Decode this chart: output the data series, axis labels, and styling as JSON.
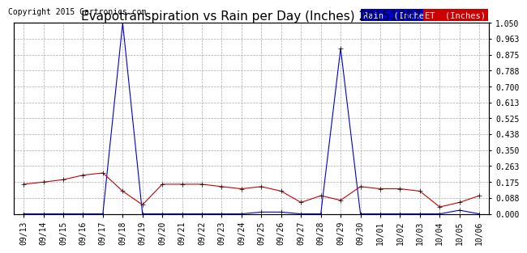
{
  "title": "Evapotranspiration vs Rain per Day (Inches) 20151007",
  "copyright": "Copyright 2015 Cartronics.com",
  "x_labels": [
    "09/13",
    "09/14",
    "09/15",
    "09/16",
    "09/17",
    "09/18",
    "09/19",
    "09/20",
    "09/21",
    "09/22",
    "09/23",
    "09/24",
    "09/25",
    "09/26",
    "09/27",
    "09/28",
    "09/29",
    "09/30",
    "10/01",
    "10/02",
    "10/03",
    "10/04",
    "10/05",
    "10/06"
  ],
  "rain_values": [
    0.0,
    0.0,
    0.0,
    0.0,
    0.0,
    1.05,
    0.0,
    0.0,
    0.0,
    0.0,
    0.0,
    0.0,
    0.01,
    0.01,
    0.0,
    0.0,
    0.91,
    0.0,
    0.0,
    0.0,
    0.0,
    0.0,
    0.02,
    0.0
  ],
  "et_values": [
    0.163,
    0.175,
    0.188,
    0.213,
    0.225,
    0.125,
    0.05,
    0.163,
    0.163,
    0.163,
    0.15,
    0.138,
    0.15,
    0.125,
    0.063,
    0.1,
    0.075,
    0.15,
    0.138,
    0.138,
    0.125,
    0.038,
    0.063,
    0.1
  ],
  "rain_color": "#0000cc",
  "et_color": "#cc0000",
  "ylim": [
    0.0,
    1.05
  ],
  "yticks": [
    0.0,
    0.088,
    0.175,
    0.263,
    0.35,
    0.438,
    0.525,
    0.613,
    0.7,
    0.788,
    0.875,
    0.963,
    1.05
  ],
  "bg_color": "#ffffff",
  "grid_color": "#aaaaaa",
  "legend_rain_bg": "#0000cc",
  "legend_et_bg": "#cc0000",
  "legend_rain_text": "Rain  (Inches)",
  "legend_et_text": "ET  (Inches)",
  "title_fontsize": 11,
  "copyright_fontsize": 7,
  "tick_fontsize": 7,
  "marker": "+",
  "markersize": 4
}
